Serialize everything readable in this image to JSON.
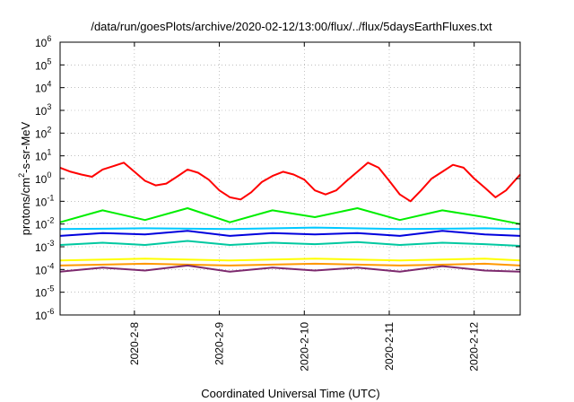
{
  "chart_data": {
    "type": "line",
    "title": "/data/run/goesPlots/archive/2020-02-12/13:00/flux/../flux/5daysEarthFluxes.txt",
    "xlabel": "Coordinated Universal Time (UTC)",
    "ylabel_parts": [
      "protons/cm",
      "2",
      "-s-sr-MeV"
    ],
    "y_scale": "log",
    "ylim": [
      1e-06,
      1000000.0
    ],
    "y_ticks": [
      {
        "base": "10",
        "exp": "-6",
        "value": 1e-06
      },
      {
        "base": "10",
        "exp": "-5",
        "value": 1e-05
      },
      {
        "base": "10",
        "exp": "-4",
        "value": 0.0001
      },
      {
        "base": "10",
        "exp": "-3",
        "value": 0.001
      },
      {
        "base": "10",
        "exp": "-2",
        "value": 0.01
      },
      {
        "base": "10",
        "exp": "-1",
        "value": 0.1
      },
      {
        "base": "10",
        "exp": "0",
        "value": 1
      },
      {
        "base": "10",
        "exp": "1",
        "value": 10
      },
      {
        "base": "10",
        "exp": "2",
        "value": 100
      },
      {
        "base": "10",
        "exp": "3",
        "value": 1000
      },
      {
        "base": "10",
        "exp": "4",
        "value": 10000
      },
      {
        "base": "10",
        "exp": "5",
        "value": 100000
      },
      {
        "base": "10",
        "exp": "6",
        "value": 1000000
      }
    ],
    "xlim": [
      "2020-02-07 03:00",
      "2020-02-12 13:00"
    ],
    "x_ticks": [
      {
        "label": "2020-2-8",
        "value": "2020-02-08 00:00"
      },
      {
        "label": "2020-2-9",
        "value": "2020-02-09 00:00"
      },
      {
        "label": "2020-2-10",
        "value": "2020-02-10 00:00"
      },
      {
        "label": "2020-2-11",
        "value": "2020-02-11 00:00"
      },
      {
        "label": "2020-2-12",
        "value": "2020-02-12 00:00"
      }
    ],
    "grid": true,
    "series": [
      {
        "color": "#ff0000",
        "x": [
          "2020-02-07 03:00",
          "2020-02-07 06:00",
          "2020-02-07 09:00",
          "2020-02-07 12:00",
          "2020-02-07 15:00",
          "2020-02-07 18:00",
          "2020-02-07 21:00",
          "2020-02-08 00:00",
          "2020-02-08 03:00",
          "2020-02-08 06:00",
          "2020-02-08 09:00",
          "2020-02-08 12:00",
          "2020-02-08 15:00",
          "2020-02-08 18:00",
          "2020-02-08 21:00",
          "2020-02-09 00:00",
          "2020-02-09 03:00",
          "2020-02-09 06:00",
          "2020-02-09 09:00",
          "2020-02-09 12:00",
          "2020-02-09 15:00",
          "2020-02-09 18:00",
          "2020-02-09 21:00",
          "2020-02-10 00:00",
          "2020-02-10 03:00",
          "2020-02-10 06:00",
          "2020-02-10 09:00",
          "2020-02-10 12:00",
          "2020-02-10 15:00",
          "2020-02-10 18:00",
          "2020-02-10 21:00",
          "2020-02-11 00:00",
          "2020-02-11 03:00",
          "2020-02-11 06:00",
          "2020-02-11 09:00",
          "2020-02-11 12:00",
          "2020-02-11 15:00",
          "2020-02-11 18:00",
          "2020-02-11 21:00",
          "2020-02-12 00:00",
          "2020-02-12 03:00",
          "2020-02-12 06:00",
          "2020-02-12 09:00",
          "2020-02-12 13:00"
        ],
        "values": [
          3,
          2,
          1.5,
          1.2,
          2.5,
          3.5,
          5,
          2,
          0.8,
          0.5,
          0.6,
          1.2,
          2.5,
          1.8,
          0.9,
          0.3,
          0.15,
          0.12,
          0.25,
          0.7,
          1.3,
          2,
          1.5,
          0.9,
          0.3,
          0.2,
          0.3,
          0.8,
          2,
          5,
          3,
          0.8,
          0.2,
          0.1,
          0.3,
          1,
          2,
          4,
          3,
          1,
          0.4,
          0.15,
          0.3,
          1.5
        ]
      },
      {
        "color": "#00ee00",
        "x": [
          "2020-02-07 03:00",
          "2020-02-07 15:00",
          "2020-02-08 03:00",
          "2020-02-08 15:00",
          "2020-02-09 03:00",
          "2020-02-09 15:00",
          "2020-02-10 03:00",
          "2020-02-10 15:00",
          "2020-02-11 03:00",
          "2020-02-11 15:00",
          "2020-02-12 03:00",
          "2020-02-12 13:00"
        ],
        "values": [
          0.012,
          0.04,
          0.015,
          0.05,
          0.012,
          0.04,
          0.02,
          0.05,
          0.015,
          0.04,
          0.02,
          0.01
        ]
      },
      {
        "color": "#00c8ff",
        "x": [
          "2020-02-07 03:00",
          "2020-02-08 03:00",
          "2020-02-09 03:00",
          "2020-02-10 03:00",
          "2020-02-11 03:00",
          "2020-02-12 03:00",
          "2020-02-12 13:00"
        ],
        "values": [
          0.006,
          0.0065,
          0.006,
          0.007,
          0.006,
          0.0065,
          0.006
        ]
      },
      {
        "color": "#0000dd",
        "x": [
          "2020-02-07 03:00",
          "2020-02-07 15:00",
          "2020-02-08 03:00",
          "2020-02-08 15:00",
          "2020-02-09 03:00",
          "2020-02-09 15:00",
          "2020-02-10 03:00",
          "2020-02-10 15:00",
          "2020-02-11 03:00",
          "2020-02-11 15:00",
          "2020-02-12 03:00",
          "2020-02-12 13:00"
        ],
        "values": [
          0.003,
          0.004,
          0.0035,
          0.005,
          0.003,
          0.004,
          0.0035,
          0.004,
          0.003,
          0.005,
          0.0035,
          0.003
        ]
      },
      {
        "color": "#00c8a0",
        "x": [
          "2020-02-07 03:00",
          "2020-02-07 15:00",
          "2020-02-08 03:00",
          "2020-02-08 15:00",
          "2020-02-09 03:00",
          "2020-02-09 15:00",
          "2020-02-10 03:00",
          "2020-02-10 15:00",
          "2020-02-11 03:00",
          "2020-02-11 15:00",
          "2020-02-12 03:00",
          "2020-02-12 13:00"
        ],
        "values": [
          0.0012,
          0.0015,
          0.0012,
          0.0018,
          0.0012,
          0.0015,
          0.0013,
          0.0016,
          0.0012,
          0.0015,
          0.0013,
          0.0011
        ]
      },
      {
        "color": "#ffff00",
        "x": [
          "2020-02-07 03:00",
          "2020-02-08 03:00",
          "2020-02-09 03:00",
          "2020-02-10 03:00",
          "2020-02-11 03:00",
          "2020-02-12 03:00",
          "2020-02-12 13:00"
        ],
        "values": [
          0.00025,
          0.0003,
          0.00025,
          0.0003,
          0.00025,
          0.0003,
          0.00025
        ]
      },
      {
        "color": "#ff9900",
        "x": [
          "2020-02-07 03:00",
          "2020-02-08 03:00",
          "2020-02-09 03:00",
          "2020-02-10 03:00",
          "2020-02-11 03:00",
          "2020-02-12 03:00",
          "2020-02-12 13:00"
        ],
        "values": [
          0.00015,
          0.00018,
          0.00015,
          0.00018,
          0.00015,
          0.00018,
          0.00015
        ]
      },
      {
        "color": "#7d2a6e",
        "x": [
          "2020-02-07 03:00",
          "2020-02-07 15:00",
          "2020-02-08 03:00",
          "2020-02-08 15:00",
          "2020-02-09 03:00",
          "2020-02-09 15:00",
          "2020-02-10 03:00",
          "2020-02-10 15:00",
          "2020-02-11 03:00",
          "2020-02-11 15:00",
          "2020-02-12 03:00",
          "2020-02-12 13:00"
        ],
        "values": [
          8e-05,
          0.00012,
          9e-05,
          0.00015,
          8e-05,
          0.00012,
          9e-05,
          0.00012,
          8e-05,
          0.00014,
          9e-05,
          8e-05
        ]
      }
    ]
  }
}
